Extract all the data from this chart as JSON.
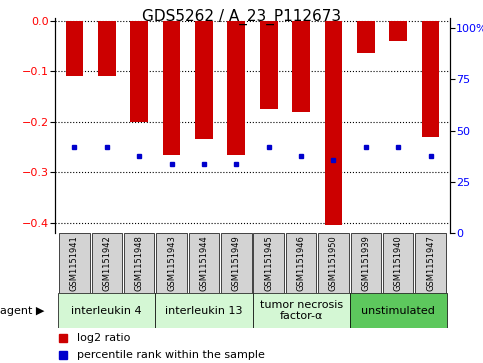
{
  "title": "GDS5262 / A_23_P112673",
  "samples": [
    "GSM1151941",
    "GSM1151942",
    "GSM1151948",
    "GSM1151943",
    "GSM1151944",
    "GSM1151949",
    "GSM1151945",
    "GSM1151946",
    "GSM1151950",
    "GSM1151939",
    "GSM1151940",
    "GSM1151947"
  ],
  "log2_ratio": [
    -0.11,
    -0.11,
    -0.2,
    -0.265,
    -0.235,
    -0.265,
    -0.175,
    -0.18,
    -0.405,
    -0.065,
    -0.04,
    -0.23
  ],
  "percentile": [
    40,
    40,
    36,
    32,
    32,
    32,
    40,
    36,
    34,
    40,
    40,
    36
  ],
  "agents": [
    {
      "label": "interleukin 4",
      "indices": [
        0,
        1,
        2
      ],
      "color": "#d4f7d4"
    },
    {
      "label": "interleukin 13",
      "indices": [
        3,
        4,
        5
      ],
      "color": "#d4f7d4"
    },
    {
      "label": "tumor necrosis\nfactor-α",
      "indices": [
        6,
        7,
        8
      ],
      "color": "#d4f7d4"
    },
    {
      "label": "unstimulated",
      "indices": [
        9,
        10,
        11
      ],
      "color": "#5dc85d"
    }
  ],
  "bar_color": "#cc0000",
  "dot_color": "#0000cc",
  "ylim_left": [
    -0.42,
    0.005
  ],
  "ylim_right": [
    0,
    105
  ],
  "yticks_left": [
    -0.4,
    -0.3,
    -0.2,
    -0.1,
    0.0
  ],
  "yticks_right": [
    0,
    25,
    50,
    75,
    100
  ],
  "background_color": "#ffffff",
  "plot_bg": "#ffffff",
  "grid_color": "#000000",
  "bar_width": 0.55,
  "agent_label": "agent",
  "legend_log2": "log2 ratio",
  "legend_pct": "percentile rank within the sample",
  "title_fontsize": 11,
  "tick_fontsize": 8,
  "sample_fontsize": 6,
  "agent_fontsize": 8
}
